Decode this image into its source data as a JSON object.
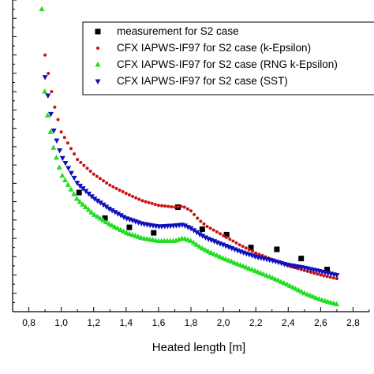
{
  "chart_data": {
    "type": "scatter",
    "title": "",
    "xlabel": "Heated length [m]",
    "ylabel": "",
    "xlim": [
      0.7,
      2.9
    ],
    "ylim": [
      0,
      17
    ],
    "x_ticks": [
      "0,8",
      "1,0",
      "1,2",
      "1,4",
      "1,6",
      "1,8",
      "2,0",
      "2,2",
      "2,4",
      "2,6",
      "2,8"
    ],
    "x_tick_values": [
      0.8,
      1.0,
      1.2,
      1.4,
      1.6,
      1.8,
      2.0,
      2.2,
      2.4,
      2.6,
      2.8
    ],
    "y_tick_values": [
      1,
      2,
      3,
      4,
      5,
      6,
      7,
      8,
      9,
      10,
      11,
      12,
      13,
      14,
      15,
      16,
      17
    ],
    "grid": false,
    "legend_position": "top-right",
    "colors": {
      "measurement": "#000000",
      "k_epsilon": "#cc1111",
      "rng": "#22dd22",
      "sst": "#1111bb"
    },
    "series": [
      {
        "key": "measurement",
        "name": "measurement for S2 case",
        "marker": "square",
        "x": [
          1.11,
          1.27,
          1.42,
          1.57,
          1.72,
          1.87,
          2.02,
          2.17,
          2.33,
          2.48,
          2.64
        ],
        "y": [
          6.5,
          5.1,
          4.6,
          4.3,
          5.7,
          4.5,
          4.2,
          3.5,
          3.4,
          2.9,
          2.3
        ]
      },
      {
        "key": "k_epsilon",
        "name": "CFX IAPWS-IF97 for S2 case (k-Epsilon)",
        "marker": "dot",
        "x": [
          0.9,
          0.95,
          1.0,
          1.1,
          1.2,
          1.3,
          1.4,
          1.5,
          1.6,
          1.7,
          1.75,
          1.8,
          1.85,
          1.9,
          2.0,
          2.1,
          2.2,
          2.3,
          2.4,
          2.5,
          2.6,
          2.7
        ],
        "y": [
          14.0,
          11.5,
          9.8,
          8.3,
          7.5,
          6.9,
          6.45,
          6.05,
          5.8,
          5.7,
          5.75,
          5.5,
          5.0,
          4.65,
          4.15,
          3.65,
          3.2,
          2.85,
          2.5,
          2.25,
          2.0,
          1.8
        ]
      },
      {
        "key": "rng",
        "name": "CFX IAPWS-IF97 for S2 case (RNG k-Epsilon)",
        "marker": "triangle-up",
        "x": [
          0.88,
          0.9,
          0.95,
          1.0,
          1.1,
          1.2,
          1.3,
          1.4,
          1.5,
          1.6,
          1.7,
          1.75,
          1.8,
          1.85,
          1.9,
          2.0,
          2.1,
          2.2,
          2.3,
          2.4,
          2.5,
          2.6,
          2.7
        ],
        "y": [
          16.5,
          11.5,
          9.0,
          7.5,
          6.1,
          5.3,
          4.75,
          4.3,
          4.0,
          3.85,
          3.85,
          4.0,
          3.85,
          3.55,
          3.3,
          2.9,
          2.55,
          2.2,
          1.85,
          1.45,
          1.0,
          0.65,
          0.4
        ]
      },
      {
        "key": "sst",
        "name": "CFX IAPWS-IF97 for S2 case (SST)",
        "marker": "triangle-down",
        "x": [
          0.9,
          0.95,
          1.0,
          1.1,
          1.2,
          1.3,
          1.4,
          1.5,
          1.6,
          1.7,
          1.75,
          1.8,
          1.85,
          1.9,
          2.0,
          2.1,
          2.2,
          2.3,
          2.4,
          2.5,
          2.6,
          2.7
        ],
        "y": [
          12.8,
          10.0,
          8.5,
          7.0,
          6.2,
          5.6,
          5.1,
          4.8,
          4.65,
          4.7,
          4.75,
          4.55,
          4.25,
          4.0,
          3.65,
          3.3,
          3.0,
          2.8,
          2.55,
          2.4,
          2.2,
          2.0
        ]
      }
    ]
  }
}
